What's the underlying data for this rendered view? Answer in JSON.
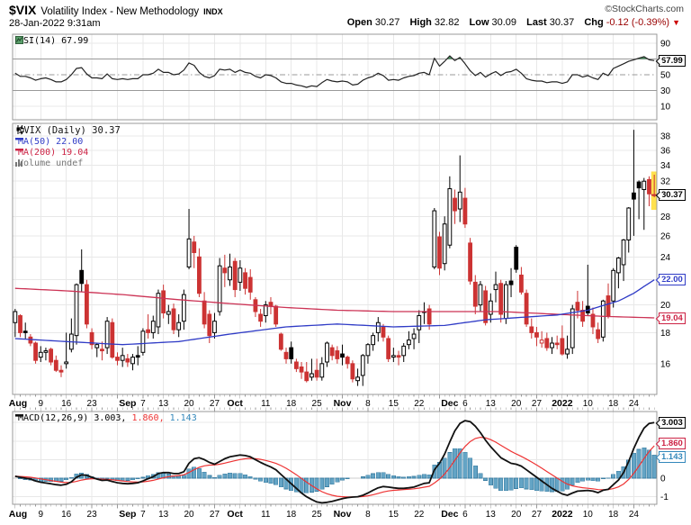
{
  "header": {
    "symbol": "$VIX",
    "title": "Volatility Index - New Methodology",
    "exchange": "INDX",
    "copyright": "©StockCharts.com",
    "datetime": "28-Jan-2022 9:31am",
    "quote": {
      "open_label": "Open",
      "open": "30.27",
      "high_label": "High",
      "high": "32.82",
      "low_label": "Low",
      "low": "30.09",
      "last_label": "Last",
      "last": "30.37",
      "chg_label": "Chg",
      "chg": "-0.12 (-0.39%)",
      "chg_dir": "▼"
    }
  },
  "rsi_panel": {
    "legend": "RSI(14) 67.99",
    "value_box": "67.99"
  },
  "price_panel": {
    "legend_symbol": "$VIX (Daily) 30.37",
    "legend_ma50": "MA(50) 22.00",
    "legend_ma200": "MA(200) 19.04",
    "legend_volume": "Volume undef",
    "box_last": "30.37",
    "box_ma50": "22.00",
    "box_ma200": "19.04"
  },
  "macd_panel": {
    "legend_name": "MACD(12,26,9)",
    "legend_macd": "3.003,",
    "legend_signal": "1.860,",
    "legend_hist": "1.143",
    "box_macd": "3.003",
    "box_signal": "1.860",
    "box_hist": "1.143"
  },
  "colors": {
    "up": "#000000",
    "down": "#cc3333",
    "ma50": "#2f3bc6",
    "ma200": "#cc3355",
    "macd_line": "#111111",
    "signal_line": "#ee3333",
    "hist_fill": "#64a4c5",
    "hist_stroke": "#3d7fa3",
    "highlight": "#ffe14d",
    "rsi_line": "#222222",
    "rsi_fill": "#2e7d46",
    "grid": "#e8e8e8",
    "border": "#999999",
    "chg": "#990000"
  },
  "x_axis": {
    "n": 126,
    "week_idx": [
      0,
      5,
      10,
      15,
      20,
      25,
      29,
      34,
      39,
      44,
      49,
      54,
      59,
      64,
      69,
      74,
      79,
      83,
      88,
      93,
      98,
      102,
      107,
      112,
      117,
      121
    ],
    "labels": [
      {
        "i": 0,
        "t": "Aug",
        "m": true
      },
      {
        "i": 5,
        "t": "9"
      },
      {
        "i": 10,
        "t": "16"
      },
      {
        "i": 15,
        "t": "23"
      },
      {
        "i": 22,
        "t": "Sep",
        "m": true
      },
      {
        "i": 25,
        "t": "7"
      },
      {
        "i": 29,
        "t": "13"
      },
      {
        "i": 34,
        "t": "20"
      },
      {
        "i": 39,
        "t": "27"
      },
      {
        "i": 43,
        "t": "Oct",
        "m": true
      },
      {
        "i": 49,
        "t": "11"
      },
      {
        "i": 54,
        "t": "18"
      },
      {
        "i": 59,
        "t": "25"
      },
      {
        "i": 64,
        "t": "Nov",
        "m": true
      },
      {
        "i": 69,
        "t": "8"
      },
      {
        "i": 74,
        "t": "15"
      },
      {
        "i": 79,
        "t": "22"
      },
      {
        "i": 85,
        "t": "Dec",
        "m": true
      },
      {
        "i": 88,
        "t": "6"
      },
      {
        "i": 93,
        "t": "13"
      },
      {
        "i": 98,
        "t": "20"
      },
      {
        "i": 102,
        "t": "27"
      },
      {
        "i": 107,
        "t": "2022",
        "m": true
      },
      {
        "i": 112,
        "t": "10"
      },
      {
        "i": 117,
        "t": "18"
      },
      {
        "i": 121,
        "t": "24"
      }
    ]
  },
  "chart_data": [
    {
      "type": "line",
      "name": "RSI(14)",
      "ylim": [
        0,
        100
      ],
      "hlines": [
        70,
        50,
        30
      ],
      "yticks": [
        90,
        50,
        30,
        10
      ],
      "last": 67.99,
      "values": [
        52,
        48,
        48,
        46,
        43,
        45,
        46,
        44,
        41,
        41,
        44,
        50,
        58,
        59,
        51,
        46,
        46,
        45,
        51,
        45,
        44,
        45,
        44,
        45,
        45,
        50,
        50,
        52,
        57,
        53,
        53,
        50,
        51,
        56,
        65,
        62,
        53,
        48,
        46,
        49,
        57,
        56,
        57,
        53,
        56,
        53,
        52,
        48,
        46,
        50,
        49,
        46,
        41,
        39,
        39,
        37,
        36,
        34,
        36,
        35,
        40,
        44,
        42,
        41,
        42,
        41,
        37,
        38,
        43,
        46,
        48,
        52,
        49,
        43,
        44,
        43,
        46,
        48,
        49,
        52,
        53,
        50,
        71,
        61,
        67,
        74,
        68,
        72,
        64,
        55,
        49,
        53,
        47,
        51,
        54,
        49,
        53,
        54,
        57,
        52,
        45,
        43,
        42,
        42,
        40,
        41,
        41,
        39,
        41,
        50,
        50,
        47,
        49,
        46,
        44,
        52,
        49,
        58,
        61,
        64,
        67,
        69,
        71,
        73,
        69,
        68
      ]
    },
    {
      "type": "candlestick",
      "name": "$VIX (Daily)",
      "scale": "log",
      "ylim": [
        14.2,
        39.9
      ],
      "yticks": [
        38,
        36,
        34,
        32,
        28,
        26,
        24,
        20,
        18,
        16
      ],
      "last": 30.37,
      "ma50_last": 22.0,
      "ma200_last": 19.04,
      "ma50_keypoints": [
        [
          0,
          17.6
        ],
        [
          10,
          17.4
        ],
        [
          21,
          17.2
        ],
        [
          32,
          17.4
        ],
        [
          42,
          17.9
        ],
        [
          53,
          18.4
        ],
        [
          63,
          18.6
        ],
        [
          74,
          18.4
        ],
        [
          84,
          18.5
        ],
        [
          92,
          18.9
        ],
        [
          100,
          19.1
        ],
        [
          106,
          19.25
        ],
        [
          112,
          19.6
        ],
        [
          118,
          20.3
        ],
        [
          121,
          20.9
        ],
        [
          125,
          22.0
        ]
      ],
      "ma200_keypoints": [
        [
          0,
          21.3
        ],
        [
          10,
          21.1
        ],
        [
          21,
          20.8
        ],
        [
          32,
          20.4
        ],
        [
          42,
          20.1
        ],
        [
          53,
          19.8
        ],
        [
          63,
          19.6
        ],
        [
          74,
          19.5
        ],
        [
          84,
          19.5
        ],
        [
          95,
          19.5
        ],
        [
          106,
          19.3
        ],
        [
          115,
          19.15
        ],
        [
          125,
          19.04
        ]
      ],
      "ohlc": [
        [
          18.7,
          19.7,
          17.7,
          19.5
        ],
        [
          19.2,
          19.3,
          17.7,
          18.0
        ],
        [
          18.1,
          18.7,
          17.6,
          18.0
        ],
        [
          17.7,
          17.9,
          17.1,
          17.3
        ],
        [
          17.3,
          17.4,
          16.0,
          16.2
        ],
        [
          16.4,
          17.1,
          16.1,
          16.7
        ],
        [
          16.7,
          17.0,
          16.2,
          16.8
        ],
        [
          16.9,
          17.0,
          15.9,
          16.1
        ],
        [
          16.2,
          16.5,
          15.5,
          15.6
        ],
        [
          15.6,
          15.9,
          15.2,
          15.5
        ],
        [
          16.0,
          18.0,
          15.7,
          16.1
        ],
        [
          16.9,
          19.0,
          16.7,
          17.9
        ],
        [
          17.8,
          21.7,
          17.2,
          21.6
        ],
        [
          22.8,
          24.7,
          21.0,
          21.7
        ],
        [
          21.6,
          22.0,
          18.3,
          18.6
        ],
        [
          18.0,
          18.3,
          16.9,
          17.2
        ],
        [
          17.0,
          17.3,
          16.4,
          17.2
        ],
        [
          16.9,
          17.4,
          16.2,
          16.8
        ],
        [
          17.0,
          19.1,
          16.6,
          18.8
        ],
        [
          18.7,
          19.0,
          16.3,
          16.4
        ],
        [
          16.4,
          16.7,
          15.9,
          16.2
        ],
        [
          16.2,
          17.0,
          15.8,
          16.5
        ],
        [
          16.3,
          16.6,
          15.8,
          16.1
        ],
        [
          16.0,
          16.6,
          15.6,
          16.4
        ],
        [
          16.5,
          17.1,
          15.9,
          16.4
        ],
        [
          16.7,
          18.3,
          16.5,
          18.1
        ],
        [
          18.2,
          19.3,
          17.6,
          18.0
        ],
        [
          18.0,
          19.2,
          17.6,
          18.8
        ],
        [
          18.4,
          21.2,
          17.9,
          20.9
        ],
        [
          21.1,
          21.6,
          19.0,
          19.4
        ],
        [
          19.3,
          20.0,
          18.6,
          19.5
        ],
        [
          19.7,
          20.1,
          17.9,
          18.2
        ],
        [
          18.2,
          19.3,
          17.7,
          18.7
        ],
        [
          18.8,
          21.2,
          18.2,
          20.8
        ],
        [
          23.1,
          28.8,
          22.9,
          25.7
        ],
        [
          25.4,
          26.0,
          23.0,
          24.4
        ],
        [
          24.0,
          24.8,
          20.6,
          20.9
        ],
        [
          20.3,
          21.0,
          18.3,
          18.6
        ],
        [
          19.3,
          19.6,
          17.3,
          17.8
        ],
        [
          18.0,
          19.4,
          17.6,
          18.8
        ],
        [
          19.5,
          23.9,
          19.2,
          23.2
        ],
        [
          23.0,
          24.2,
          21.4,
          22.6
        ],
        [
          22.0,
          24.3,
          21.5,
          23.1
        ],
        [
          23.6,
          23.9,
          20.6,
          21.2
        ],
        [
          21.8,
          23.7,
          21.1,
          23.0
        ],
        [
          22.6,
          23.0,
          20.8,
          21.3
        ],
        [
          22.2,
          22.9,
          20.4,
          21.0
        ],
        [
          20.4,
          20.6,
          19.1,
          19.5
        ],
        [
          19.3,
          19.7,
          18.4,
          18.8
        ],
        [
          19.2,
          20.3,
          18.7,
          20.0
        ],
        [
          20.2,
          20.6,
          19.3,
          19.9
        ],
        [
          19.9,
          20.0,
          18.4,
          18.6
        ],
        [
          17.9,
          18.0,
          16.8,
          16.9
        ],
        [
          16.7,
          17.0,
          16.0,
          16.3
        ],
        [
          17.0,
          17.4,
          16.0,
          16.3
        ],
        [
          16.1,
          16.3,
          15.5,
          15.7
        ],
        [
          15.8,
          16.1,
          15.1,
          15.5
        ],
        [
          15.5,
          16.1,
          14.9,
          15.0
        ],
        [
          15.2,
          16.3,
          15.0,
          15.4
        ],
        [
          15.6,
          16.3,
          15.0,
          15.2
        ],
        [
          15.2,
          16.4,
          15.0,
          16.0
        ],
        [
          16.1,
          17.4,
          15.8,
          17.3
        ],
        [
          17.0,
          17.2,
          16.2,
          16.5
        ],
        [
          16.8,
          17.1,
          16.0,
          16.3
        ],
        [
          16.6,
          17.2,
          15.9,
          16.4
        ],
        [
          16.4,
          16.5,
          15.7,
          16.0
        ],
        [
          16.0,
          16.2,
          14.9,
          15.1
        ],
        [
          15.0,
          15.7,
          14.7,
          15.2
        ],
        [
          15.3,
          16.6,
          14.7,
          16.5
        ],
        [
          16.5,
          17.3,
          16.0,
          17.2
        ],
        [
          17.2,
          18.0,
          16.8,
          17.8
        ],
        [
          18.0,
          19.1,
          17.4,
          18.7
        ],
        [
          18.4,
          18.6,
          17.4,
          17.7
        ],
        [
          17.6,
          17.8,
          16.1,
          16.3
        ],
        [
          16.4,
          17.0,
          16.1,
          16.5
        ],
        [
          16.5,
          16.8,
          15.9,
          16.4
        ],
        [
          16.5,
          17.3,
          16.1,
          17.1
        ],
        [
          17.2,
          18.1,
          16.9,
          17.5
        ],
        [
          17.6,
          18.3,
          16.9,
          17.9
        ],
        [
          18.2,
          19.6,
          17.3,
          19.2
        ],
        [
          19.5,
          20.2,
          18.6,
          19.5
        ],
        [
          19.7,
          20.0,
          18.2,
          18.6
        ],
        [
          23.1,
          28.9,
          22.9,
          28.6
        ],
        [
          25.9,
          26.4,
          22.4,
          23.0
        ],
        [
          23.4,
          28.0,
          22.8,
          27.2
        ],
        [
          25.1,
          32.6,
          24.8,
          31.1
        ],
        [
          30.0,
          31.0,
          27.2,
          28.6
        ],
        [
          28.8,
          35.3,
          27.4,
          30.7
        ],
        [
          30.0,
          31.2,
          26.8,
          27.2
        ],
        [
          25.3,
          25.8,
          21.6,
          21.9
        ],
        [
          21.8,
          22.4,
          19.3,
          19.9
        ],
        [
          20.0,
          21.9,
          19.5,
          21.6
        ],
        [
          21.1,
          21.5,
          18.5,
          18.7
        ],
        [
          19.3,
          20.9,
          18.7,
          20.3
        ],
        [
          21.2,
          22.7,
          20.2,
          21.6
        ],
        [
          21.7,
          22.0,
          18.7,
          19.3
        ],
        [
          19.0,
          21.9,
          18.6,
          21.6
        ],
        [
          21.9,
          23.0,
          20.6,
          21.6
        ],
        [
          24.9,
          25.1,
          22.6,
          22.9
        ],
        [
          22.4,
          23.1,
          20.8,
          21.0
        ],
        [
          20.9,
          21.2,
          18.4,
          18.6
        ],
        [
          18.4,
          19.0,
          17.6,
          18.0
        ],
        [
          18.0,
          18.4,
          17.1,
          17.7
        ],
        [
          17.3,
          18.1,
          17.0,
          17.5
        ],
        [
          17.6,
          18.0,
          16.8,
          17.0
        ],
        [
          17.0,
          17.7,
          16.6,
          17.3
        ],
        [
          17.3,
          17.8,
          16.9,
          17.2
        ],
        [
          17.6,
          18.5,
          16.5,
          16.6
        ],
        [
          16.6,
          17.8,
          16.3,
          16.9
        ],
        [
          17.0,
          20.0,
          16.6,
          19.7
        ],
        [
          20.2,
          21.1,
          19.0,
          19.6
        ],
        [
          19.6,
          20.3,
          18.4,
          18.8
        ],
        [
          19.9,
          23.3,
          19.2,
          19.4
        ],
        [
          19.3,
          19.8,
          17.9,
          18.4
        ],
        [
          18.2,
          18.7,
          17.3,
          17.6
        ],
        [
          17.7,
          20.4,
          17.4,
          20.3
        ],
        [
          20.7,
          21.7,
          19.0,
          19.2
        ],
        [
          20.3,
          23.0,
          19.8,
          22.8
        ],
        [
          22.6,
          24.0,
          21.3,
          23.9
        ],
        [
          23.3,
          25.7,
          21.9,
          25.6
        ],
        [
          25.6,
          29.0,
          24.4,
          28.9
        ],
        [
          30.6,
          38.9,
          26.0,
          29.9
        ],
        [
          31.9,
          32.1,
          27.7,
          31.2
        ],
        [
          31.0,
          32.4,
          26.6,
          32.0
        ],
        [
          32.2,
          32.6,
          29.1,
          30.5
        ],
        [
          30.3,
          32.8,
          30.1,
          30.4
        ]
      ]
    },
    {
      "type": "macd",
      "name": "MACD(12,26,9)",
      "yticks": [
        0,
        -1
      ],
      "signal_period": 9,
      "last_macd": 3.003,
      "last_signal": 1.86,
      "last_hist": 1.143,
      "macd": [
        0.1,
        0.05,
        0.0,
        -0.05,
        -0.15,
        -0.22,
        -0.26,
        -0.3,
        -0.35,
        -0.38,
        -0.33,
        -0.2,
        0.05,
        0.18,
        0.15,
        0.05,
        -0.05,
        -0.12,
        -0.1,
        -0.18,
        -0.25,
        -0.28,
        -0.3,
        -0.28,
        -0.25,
        -0.15,
        -0.03,
        0.08,
        0.25,
        0.3,
        0.3,
        0.25,
        0.25,
        0.35,
        0.8,
        1.05,
        1.1,
        1.0,
        0.85,
        0.75,
        0.9,
        1.05,
        1.15,
        1.2,
        1.25,
        1.22,
        1.15,
        1.0,
        0.85,
        0.72,
        0.6,
        0.45,
        0.2,
        -0.05,
        -0.3,
        -0.55,
        -0.8,
        -1.0,
        -1.15,
        -1.28,
        -1.33,
        -1.3,
        -1.25,
        -1.18,
        -1.1,
        -1.05,
        -1.02,
        -1.0,
        -0.92,
        -0.8,
        -0.65,
        -0.52,
        -0.45,
        -0.48,
        -0.52,
        -0.55,
        -0.55,
        -0.52,
        -0.48,
        -0.38,
        -0.28,
        -0.25,
        0.45,
        0.8,
        1.3,
        1.95,
        2.55,
        2.95,
        3.1,
        3.05,
        2.8,
        2.45,
        2.05,
        1.7,
        1.4,
        1.1,
        0.95,
        0.8,
        0.75,
        0.65,
        0.45,
        0.25,
        0.05,
        -0.15,
        -0.35,
        -0.55,
        -0.7,
        -0.85,
        -0.92,
        -0.8,
        -0.7,
        -0.68,
        -0.66,
        -0.7,
        -0.78,
        -0.65,
        -0.6,
        -0.35,
        -0.1,
        0.3,
        0.9,
        1.6,
        2.2,
        2.7,
        2.95,
        3.0
      ]
    }
  ]
}
